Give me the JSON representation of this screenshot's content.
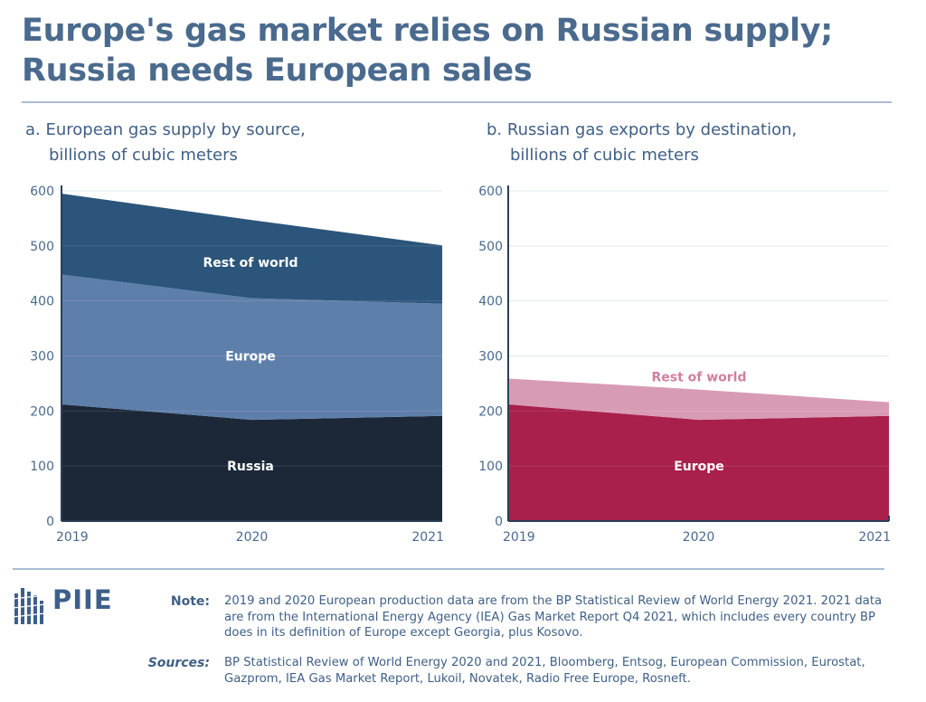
{
  "title_line1": "Europe's gas market relies on Russian supply;",
  "title_line2": "Russia needs European sales",
  "colors": {
    "title": "#4a6a8e",
    "russia": "#1c2838",
    "europe": "#5f7fab",
    "rest_of_world_a": "#2b557a",
    "europe_b": "#a8204b",
    "rest_of_world_b": "#d89bb6"
  },
  "chart_data": [
    {
      "type": "area",
      "stacked": true,
      "title": "a. European gas supply by source,",
      "title_line2": "billions of cubic meters",
      "x": [
        "2019",
        "2020",
        "2021"
      ],
      "ylim": [
        0,
        600
      ],
      "yticks": [
        "0",
        "100",
        "200",
        "300",
        "400",
        "500",
        "600"
      ],
      "grid": true,
      "series": [
        {
          "name": "Russia",
          "values": [
            212,
            184,
            191
          ]
        },
        {
          "name": "Europe",
          "values": [
            236,
            221,
            204
          ]
        },
        {
          "name": "Rest of world",
          "values": [
            147,
            142,
            106
          ]
        }
      ]
    },
    {
      "type": "area",
      "stacked": true,
      "title": "b. Russian gas exports by destination,",
      "title_line2": "billions of cubic meters",
      "x": [
        "2019",
        "2020",
        "2021"
      ],
      "ylim": [
        0,
        600
      ],
      "yticks": [
        "0",
        "100",
        "200",
        "300",
        "400",
        "500",
        "600"
      ],
      "grid": true,
      "series": [
        {
          "name": "Europe",
          "values": [
            212,
            184,
            191
          ]
        },
        {
          "name": "Rest of world",
          "values": [
            47,
            55,
            25
          ]
        }
      ]
    }
  ],
  "logo": "PIIE",
  "note_label": "Note:",
  "note_text": "2019 and 2020 European production data are from the BP Statistical Review of World Energy 2021. 2021 data are from the International Energy Agency (IEA) Gas Market Report Q4 2021, which includes every country BP does in its definition of Europe except Georgia, plus Kosovo.",
  "sources_label": "Sources:",
  "sources_text": "BP Statistical Review of World Energy 2020 and 2021, Bloomberg, Entsog, European Commission, Eurostat, Gazprom, IEA Gas Market Report, Lukoil, Novatek, Radio Free Europe, Rosneft."
}
